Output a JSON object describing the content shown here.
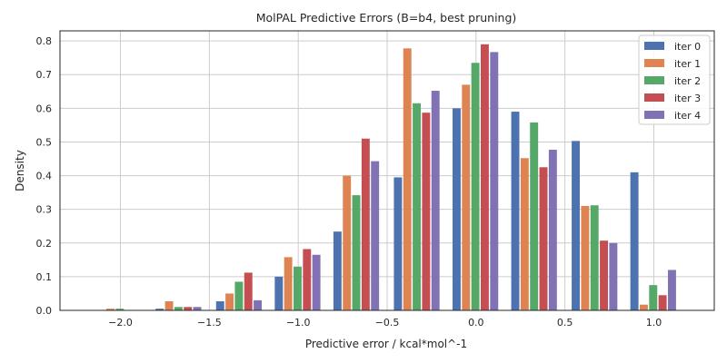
{
  "chart_data": {
    "type": "bar",
    "title": "MolPAL Predictive Errors (B=b4, best pruning)",
    "xlabel": "Predictive error / kcal*mol^-1",
    "ylabel": "Density",
    "xlim": [
      -2.34,
      1.34
    ],
    "ylim": [
      0,
      0.83
    ],
    "xticks": [
      -2.0,
      -1.5,
      -1.0,
      -0.5,
      0.0,
      0.5,
      1.0
    ],
    "xtick_labels": [
      "−2.0",
      "−1.5",
      "−1.0",
      "−0.5",
      "0.0",
      "0.5",
      "1.0"
    ],
    "yticks": [
      0.0,
      0.1,
      0.2,
      0.3,
      0.4,
      0.5,
      0.6,
      0.7,
      0.8
    ],
    "ytick_labels": [
      "0.0",
      "0.1",
      "0.2",
      "0.3",
      "0.4",
      "0.5",
      "0.6",
      "0.7",
      "0.8"
    ],
    "grid": true,
    "legend_position": "top-right",
    "bin_centers": [
      -2.0,
      -1.67,
      -1.33,
      -1.0,
      -0.67,
      -0.33,
      0.0,
      0.33,
      0.67,
      1.0
    ],
    "series": [
      {
        "name": "iter 0",
        "color": "#4C72B0",
        "values": [
          0.0,
          0.005,
          0.027,
          0.1,
          0.234,
          0.395,
          0.6,
          0.59,
          0.503,
          0.41
        ]
      },
      {
        "name": "iter 1",
        "color": "#DD8452",
        "values": [
          0.005,
          0.027,
          0.05,
          0.158,
          0.4,
          0.778,
          0.67,
          0.452,
          0.31,
          0.017
        ]
      },
      {
        "name": "iter 2",
        "color": "#55A868",
        "values": [
          0.005,
          0.01,
          0.085,
          0.13,
          0.342,
          0.615,
          0.735,
          0.558,
          0.312,
          0.075
        ]
      },
      {
        "name": "iter 3",
        "color": "#C44E52",
        "values": [
          0.0,
          0.01,
          0.112,
          0.182,
          0.51,
          0.587,
          0.79,
          0.425,
          0.207,
          0.045
        ]
      },
      {
        "name": "iter 4",
        "color": "#8172B3",
        "values": [
          0.0,
          0.01,
          0.03,
          0.165,
          0.443,
          0.652,
          0.767,
          0.477,
          0.2,
          0.12
        ]
      }
    ]
  }
}
